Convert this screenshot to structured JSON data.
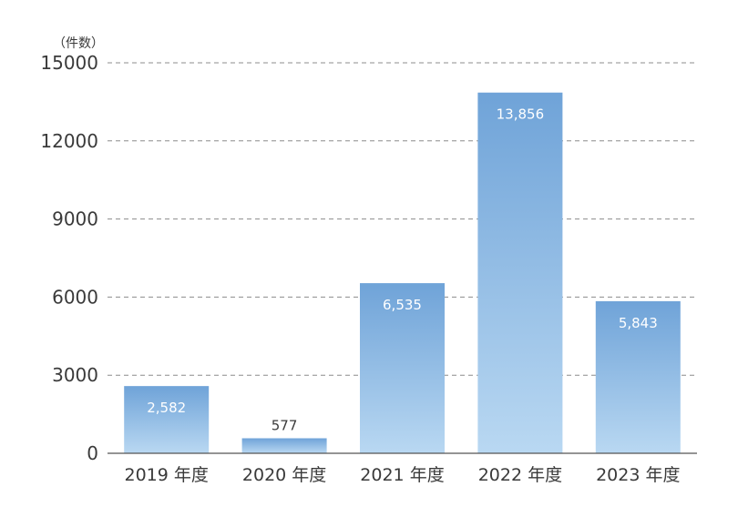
{
  "chart_data": {
    "type": "bar",
    "unit_label": "（件数）",
    "categories": [
      "2019 年度",
      "2020 年度",
      "2021 年度",
      "2022 年度",
      "2023 年度"
    ],
    "values": [
      2582,
      577,
      6535,
      13856,
      5843
    ],
    "value_labels": [
      "2,582",
      "577",
      "6,535",
      "13,856",
      "5,843"
    ],
    "yticks": [
      "0",
      "3000",
      "6000",
      "9000",
      "12000",
      "15000"
    ],
    "ylim": [
      0,
      15000
    ],
    "grid": "dashed horizontal",
    "colors": {
      "bar_top": "#6fa3d8",
      "bar_bottom": "#b9d8f2",
      "inner_label": "#ffffff",
      "outer_label": "#3a3a3a",
      "grid": "#8c8c8c",
      "axis": "#555555"
    }
  }
}
